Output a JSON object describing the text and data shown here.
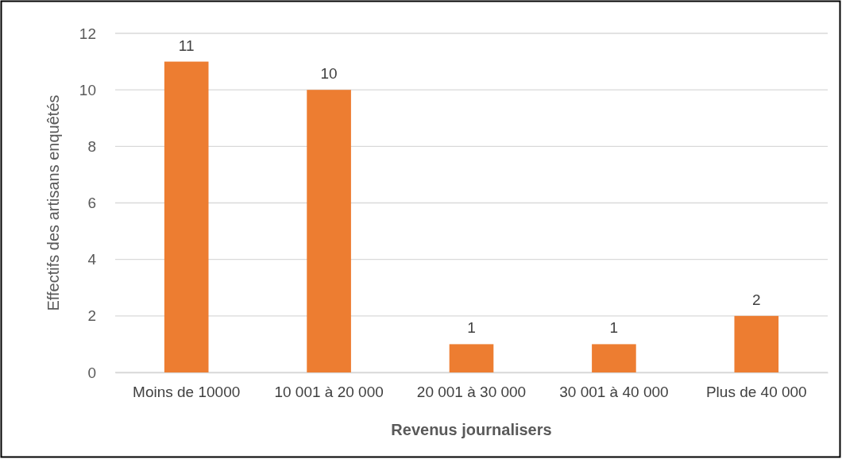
{
  "chart_data": {
    "type": "bar",
    "xlabel": "Revenus journalisers",
    "ylabel": "Effectifs des artisans enquêtés",
    "categories": [
      "Moins de 10000",
      "10 001 à 20 000",
      "20 001 à 30 000",
      "30 001 à 40 000",
      "Plus de 40 000"
    ],
    "values": [
      11,
      10,
      1,
      1,
      2
    ],
    "color": "#ed7d31",
    "ylim": [
      0,
      12
    ],
    "yticks": [
      0,
      2,
      4,
      6,
      8,
      10,
      12
    ],
    "grid": "y",
    "data_labels": true
  }
}
